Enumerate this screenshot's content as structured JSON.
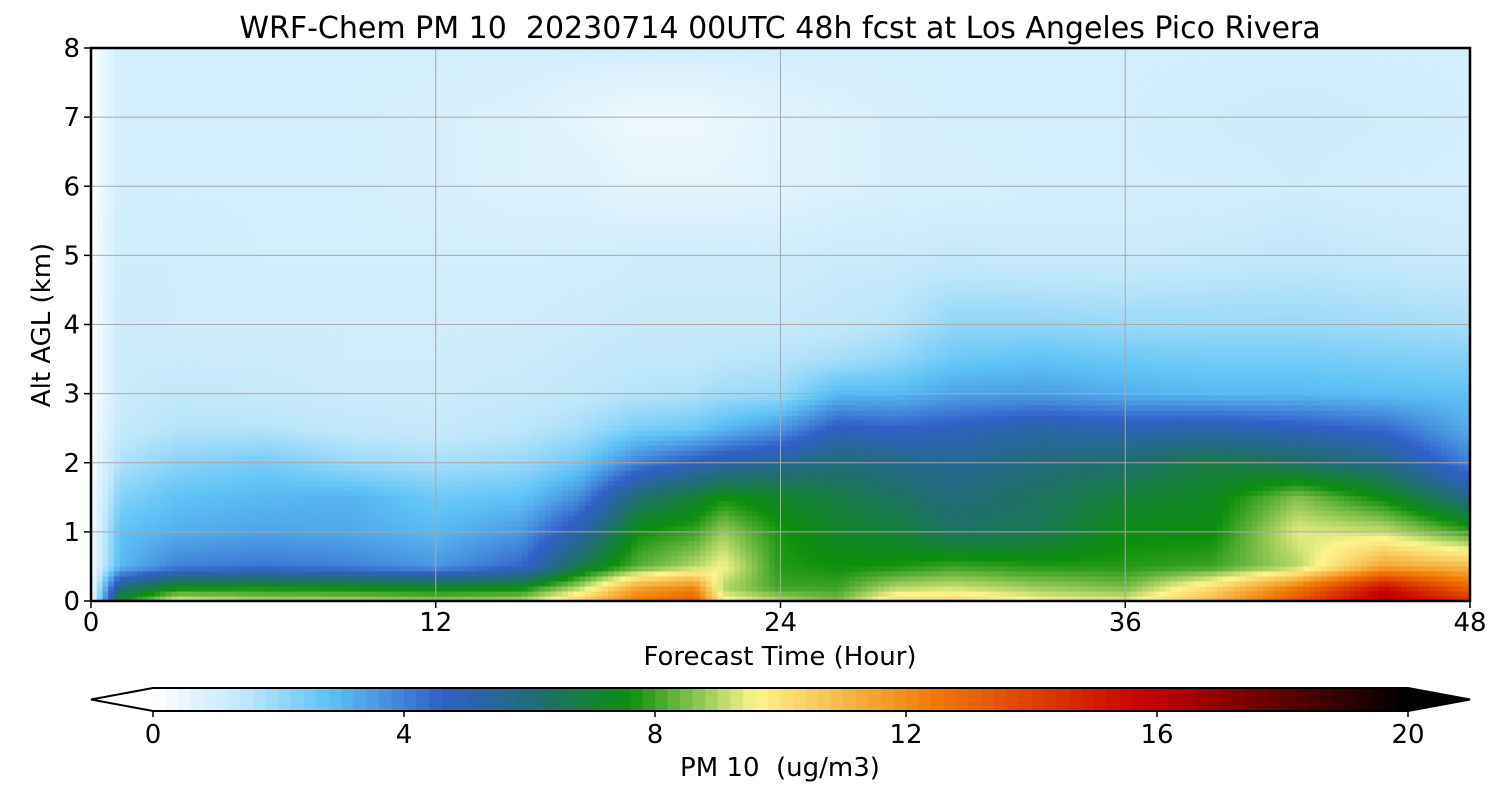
{
  "chart_data": {
    "type": "heatmap",
    "title": "WRF-Chem PM 10  20230714 00UTC 48h fcst at Los Angeles Pico Rivera",
    "xlabel": "Forecast Time (Hour)",
    "ylabel": "Alt AGL (km)",
    "xlim": [
      0,
      48
    ],
    "ylim": [
      0,
      8
    ],
    "x_ticks": [
      "0",
      "12",
      "24",
      "36",
      "48"
    ],
    "y_ticks": [
      "0",
      "1",
      "2",
      "3",
      "4",
      "5",
      "6",
      "7",
      "8"
    ],
    "grid": true,
    "colorbar": {
      "label": "PM 10  (ug/m3)",
      "range": [
        0,
        20
      ],
      "ticks": [
        "0",
        "4",
        "8",
        "12",
        "16",
        "20"
      ],
      "extend": "both",
      "stops": [
        {
          "v": 0,
          "c": "#ffffff"
        },
        {
          "v": 1.5,
          "c": "#bde6fa"
        },
        {
          "v": 2.8,
          "c": "#5ec3f6"
        },
        {
          "v": 4.6,
          "c": "#3160c8"
        },
        {
          "v": 6.2,
          "c": "#1f6e6e"
        },
        {
          "v": 7.6,
          "c": "#0d8f0d"
        },
        {
          "v": 9.6,
          "c": "#fcf58e"
        },
        {
          "v": 12.5,
          "c": "#f07800"
        },
        {
          "v": 15.8,
          "c": "#c80000"
        },
        {
          "v": 20,
          "c": "#000000"
        }
      ]
    },
    "x_hours": [
      0,
      1,
      3,
      6,
      9,
      12,
      15,
      17,
      19,
      21,
      22,
      24,
      26,
      28,
      30,
      33,
      36,
      39,
      42,
      45,
      48
    ],
    "z_km": [
      0,
      0.2,
      0.5,
      1.0,
      1.5,
      2.0,
      2.5,
      3.0,
      3.5,
      4.0,
      5.0,
      6.0,
      7.0,
      8.0
    ],
    "pm10": [
      [
        0.2,
        0.2,
        0.2,
        0.2,
        0.2,
        0.2,
        0.2,
        0.1,
        0.1,
        0.1,
        0.1,
        0.1,
        0.1,
        0.1
      ],
      [
        7.5,
        6.0,
        3.0,
        2.8,
        2.3,
        1.7,
        1.3,
        1.2,
        1.2,
        1.2,
        1.1,
        1.0,
        1.0,
        1.0
      ],
      [
        9.5,
        7.5,
        4.0,
        3.2,
        2.8,
        2.2,
        1.6,
        1.4,
        1.2,
        1.1,
        1.1,
        1.0,
        1.0,
        1.0
      ],
      [
        9.0,
        7.6,
        4.2,
        3.4,
        3.0,
        2.5,
        1.6,
        1.3,
        1.2,
        1.1,
        1.0,
        1.0,
        1.0,
        1.0
      ],
      [
        9.0,
        7.5,
        4.0,
        3.3,
        3.1,
        2.0,
        1.4,
        1.2,
        1.1,
        1.1,
        1.0,
        1.0,
        1.0,
        1.0
      ],
      [
        8.8,
        7.3,
        3.6,
        3.0,
        2.6,
        1.8,
        1.3,
        1.2,
        1.1,
        1.1,
        1.0,
        0.9,
        0.9,
        1.0
      ],
      [
        9.0,
        7.5,
        4.5,
        3.6,
        2.8,
        2.0,
        1.5,
        1.3,
        1.2,
        1.1,
        1.0,
        0.8,
        0.8,
        1.0
      ],
      [
        10.5,
        9.0,
        6.8,
        5.2,
        3.8,
        2.6,
        1.8,
        1.4,
        1.3,
        1.2,
        1.0,
        0.8,
        0.6,
        1.0
      ],
      [
        12.5,
        11.5,
        8.2,
        7.6,
        6.2,
        4.0,
        2.4,
        1.6,
        1.4,
        1.3,
        1.1,
        0.6,
        0.4,
        1.0
      ],
      [
        13.2,
        12.2,
        9.0,
        8.0,
        7.0,
        4.8,
        2.6,
        1.7,
        1.4,
        1.3,
        1.1,
        0.6,
        0.4,
        1.0
      ],
      [
        9.8,
        9.0,
        9.6,
        8.8,
        7.6,
        5.2,
        3.0,
        1.9,
        1.5,
        1.3,
        1.1,
        0.6,
        0.5,
        1.0
      ],
      [
        9.0,
        8.0,
        7.8,
        7.7,
        7.2,
        5.6,
        3.6,
        2.0,
        1.6,
        1.3,
        1.1,
        0.7,
        0.7,
        1.0
      ],
      [
        8.5,
        8.0,
        7.6,
        7.2,
        6.8,
        6.0,
        4.8,
        3.0,
        1.8,
        1.4,
        1.2,
        0.8,
        0.8,
        1.0
      ],
      [
        10.2,
        9.0,
        7.7,
        7.0,
        6.4,
        5.8,
        4.6,
        3.0,
        2.1,
        1.6,
        1.2,
        0.9,
        0.9,
        1.0
      ],
      [
        10.4,
        9.2,
        8.0,
        6.4,
        6.0,
        5.5,
        4.8,
        3.4,
        2.6,
        2.1,
        1.3,
        0.9,
        1.0,
        1.0
      ],
      [
        9.6,
        8.8,
        7.8,
        6.6,
        6.4,
        6.0,
        5.2,
        3.5,
        2.8,
        2.1,
        1.2,
        1.0,
        1.0,
        1.0
      ],
      [
        9.4,
        8.5,
        7.8,
        7.5,
        7.0,
        6.2,
        5.0,
        3.2,
        2.6,
        2.0,
        1.2,
        1.0,
        1.0,
        1.0
      ],
      [
        11.0,
        10.2,
        8.0,
        7.5,
        7.3,
        6.8,
        5.1,
        3.0,
        2.5,
        2.0,
        1.3,
        1.0,
        1.1,
        1.0
      ],
      [
        13.5,
        12.5,
        9.0,
        9.4,
        8.6,
        6.4,
        4.8,
        3.0,
        2.5,
        2.0,
        1.4,
        1.1,
        1.2,
        1.0
      ],
      [
        16.5,
        15.5,
        11.5,
        9.2,
        7.5,
        5.8,
        4.4,
        2.9,
        2.4,
        1.9,
        1.3,
        1.0,
        1.1,
        1.0
      ],
      [
        14.5,
        13.0,
        11.0,
        8.0,
        5.8,
        4.0,
        3.2,
        2.8,
        2.3,
        1.8,
        1.2,
        1.0,
        1.0,
        1.0
      ]
    ]
  }
}
